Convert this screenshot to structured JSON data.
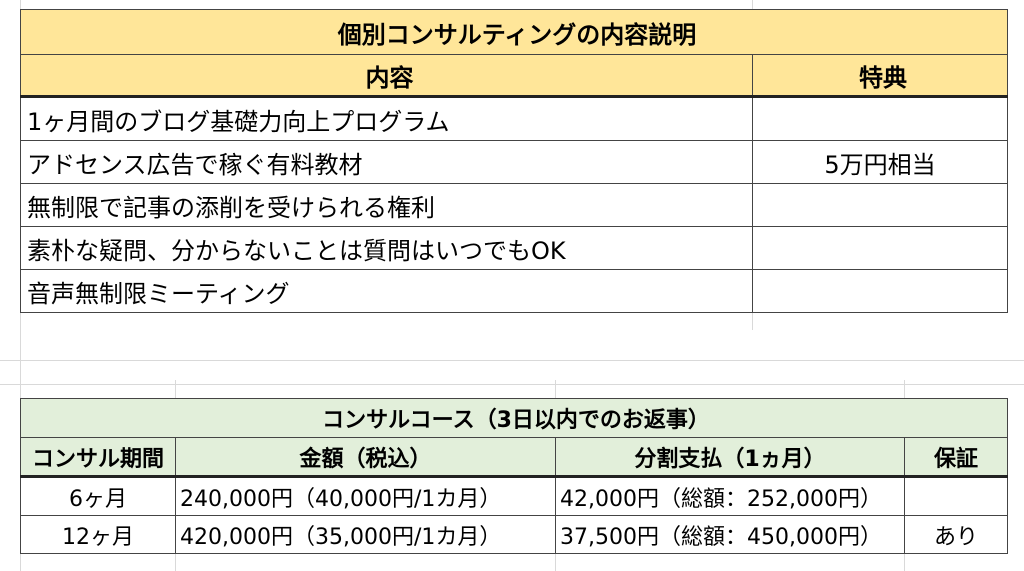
{
  "consult_table": {
    "title": "個別コンサルティングの内容説明",
    "header_content": "内容",
    "header_bonus": "特典",
    "rows": [
      {
        "content": "1ヶ月間のブログ基礎力向上プログラム",
        "bonus": ""
      },
      {
        "content": "アドセンス広告で稼ぐ有料教材",
        "bonus": "5万円相当"
      },
      {
        "content": "無制限で記事の添削を受けられる権利",
        "bonus": ""
      },
      {
        "content": "素朴な疑問、分からないことは質問はいつでもOK",
        "bonus": ""
      },
      {
        "content": "音声無制限ミーティング",
        "bonus": ""
      }
    ]
  },
  "course_table": {
    "title": "コンサルコース（3日以内でのお返事）",
    "headers": {
      "period": "コンサル期間",
      "price": "金額（税込）",
      "installment": "分割支払（1ヵ月）",
      "guarantee": "保証"
    },
    "rows": [
      {
        "period": "6ヶ月",
        "price": "240,000円（40,000円/1カ月）",
        "installment": "42,000円（総額：252,000円）",
        "guarantee": ""
      },
      {
        "period": "12ヶ月",
        "price": "420,000円（35,000円/1カ月）",
        "installment": "37,500円（総額：450,000円）",
        "guarantee": "あり"
      }
    ]
  }
}
